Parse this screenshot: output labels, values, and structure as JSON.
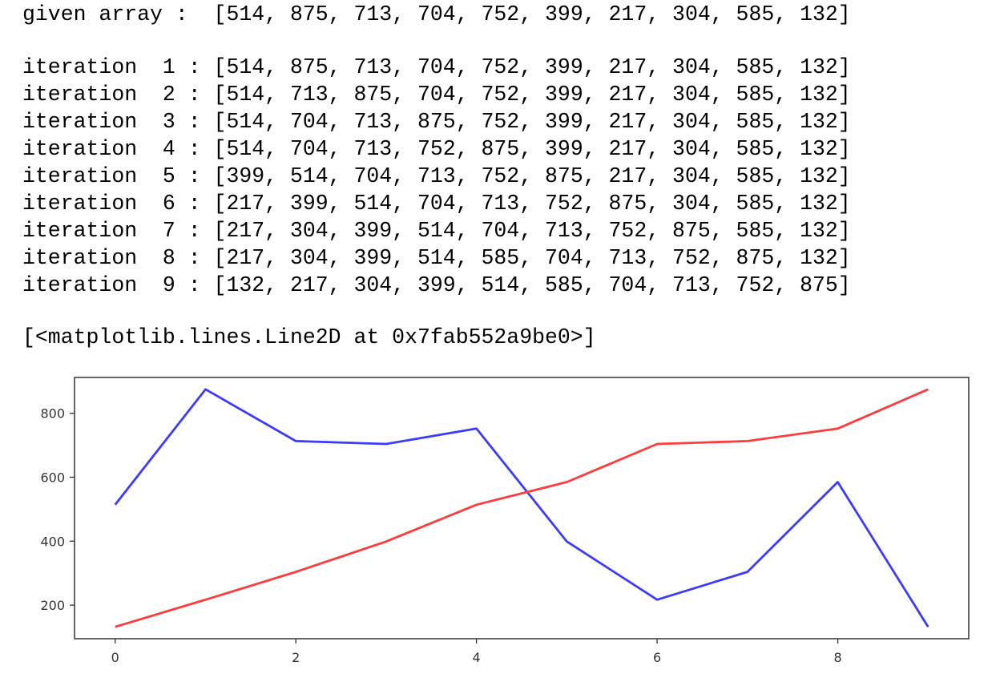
{
  "output": {
    "given_label": "given array :",
    "given_array": "[514, 875, 713, 704, 752, 399, 217, 304, 585, 132]",
    "iterations": [
      {
        "label": "iteration  1 :",
        "array": "[514, 875, 713, 704, 752, 399, 217, 304, 585, 132]"
      },
      {
        "label": "iteration  2 :",
        "array": "[514, 713, 875, 704, 752, 399, 217, 304, 585, 132]"
      },
      {
        "label": "iteration  3 :",
        "array": "[514, 704, 713, 875, 752, 399, 217, 304, 585, 132]"
      },
      {
        "label": "iteration  4 :",
        "array": "[514, 704, 713, 752, 875, 399, 217, 304, 585, 132]"
      },
      {
        "label": "iteration  5 :",
        "array": "[399, 514, 704, 713, 752, 875, 217, 304, 585, 132]"
      },
      {
        "label": "iteration  6 :",
        "array": "[217, 399, 514, 704, 713, 752, 875, 304, 585, 132]"
      },
      {
        "label": "iteration  7 :",
        "array": "[217, 304, 399, 514, 704, 713, 752, 875, 585, 132]"
      },
      {
        "label": "iteration  8 :",
        "array": "[217, 304, 399, 514, 585, 704, 713, 752, 875, 132]"
      },
      {
        "label": "iteration  9 :",
        "array": "[132, 217, 304, 399, 514, 585, 704, 713, 752, 875]"
      }
    ],
    "repr": "[<matplotlib.lines.Line2D at 0x7fab552a9be0>]"
  },
  "chart_data": {
    "type": "line",
    "x": [
      0,
      1,
      2,
      3,
      4,
      5,
      6,
      7,
      8,
      9
    ],
    "series": [
      {
        "values": [
          514,
          875,
          713,
          704,
          752,
          399,
          217,
          304,
          585,
          132
        ],
        "color": "#3b3bff"
      },
      {
        "values": [
          132,
          217,
          304,
          399,
          514,
          585,
          704,
          713,
          752,
          875
        ],
        "color": "#ff3b3b"
      }
    ],
    "xticks": [
      0,
      2,
      4,
      6,
      8
    ],
    "yticks": [
      200,
      400,
      600,
      800
    ],
    "xlim": [
      -0.45,
      9.45
    ],
    "ylim": [
      95,
      912
    ],
    "grid": false,
    "title": "",
    "xlabel": "",
    "ylabel": ""
  }
}
